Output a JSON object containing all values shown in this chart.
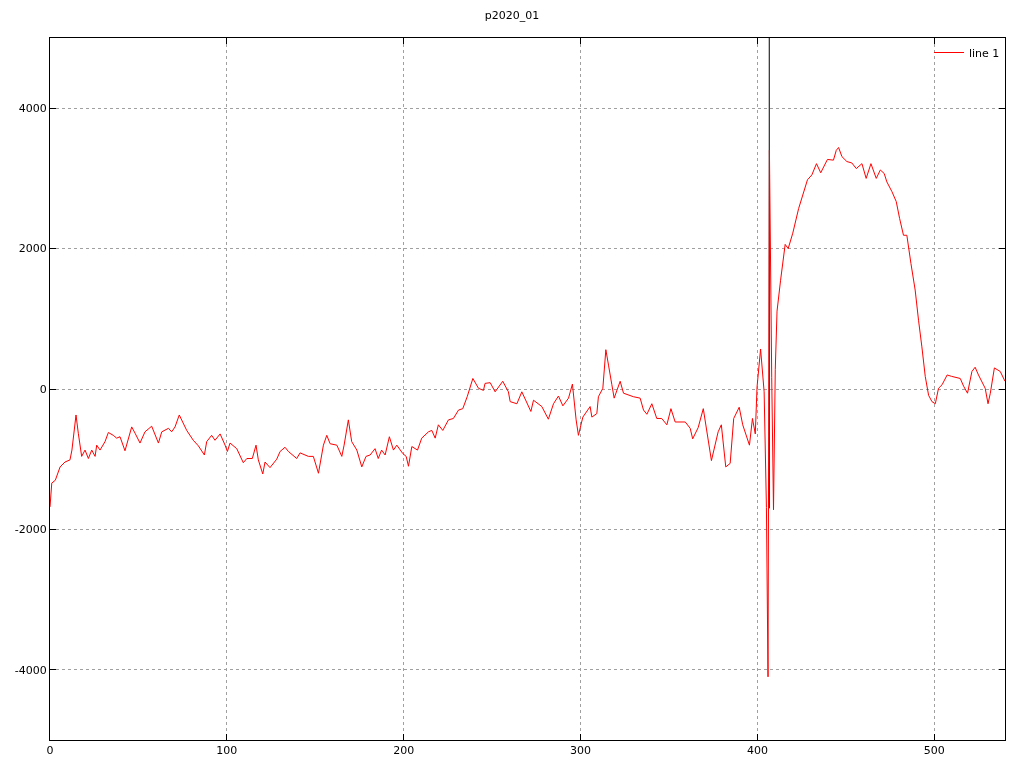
{
  "chart_data": {
    "type": "line",
    "title": "p2020_01",
    "xlim": [
      0,
      540
    ],
    "ylim": [
      -5000,
      5000
    ],
    "xticks": [
      0,
      100,
      200,
      300,
      400,
      500
    ],
    "yticks": [
      -4000,
      -2000,
      0,
      2000,
      4000
    ],
    "grid": true,
    "legend": "top right",
    "marker": "none",
    "line_style": "solid",
    "series": [
      {
        "name": "line 1",
        "color": "#ff0000",
        "x": [
          0,
          1,
          3,
          5.7,
          8.5,
          11.3,
          12.4,
          14.7,
          16,
          17.9,
          19.8,
          21.7,
          23.6,
          25.5,
          26.4,
          28.3,
          31.1,
          33,
          35.8,
          37.7,
          39.6,
          42.4,
          46.2,
          48.1,
          50.9,
          53.7,
          57.5,
          61.3,
          63.2,
          67,
          68.8,
          70.7,
          73.1,
          77.3,
          81,
          83.9,
          87.3,
          88.6,
          91.4,
          93.3,
          96.2,
          99,
          100.3,
          101.8,
          105.6,
          109.3,
          111.3,
          114.4,
          116.5,
          117.8,
          120.3,
          121.6,
          124.4,
          128.2,
          130.1,
          132.9,
          134.8,
          139.5,
          141.4,
          146.1,
          148.9,
          151.8,
          154.6,
          156.5,
          158.4,
          162.2,
          165,
          166.3,
          168.7,
          170.6,
          173.5,
          176.3,
          178.7,
          181,
          183.8,
          185.6,
          187.5,
          189.5,
          191.9,
          194.2,
          196.1,
          199.5,
          201.4,
          202.7,
          204.6,
          207.8,
          210.2,
          214,
          215.9,
          217.8,
          219.6,
          222.1,
          225.3,
          228.1,
          231,
          233.4,
          235.9,
          239.1,
          242.3,
          245.1,
          246,
          248.9,
          251.7,
          256,
          259.2,
          260.2,
          264,
          266.8,
          271.9,
          273.4,
          278.1,
          281.8,
          284.7,
          287.5,
          290,
          293.2,
          295.4,
          297.5,
          298.8,
          301.3,
          305.4,
          306.4,
          309.2,
          310.1,
          312.6,
          314.3,
          315.8,
          317.7,
          319,
          322.4,
          324.3,
          329.9,
          333.7,
          335.6,
          337.5,
          340.3,
          343.1,
          345.9,
          348.8,
          351.1,
          353.5,
          359.2,
          362,
          363.4,
          366.5,
          369.4,
          374,
          377.8,
          379.6,
          382.1,
          384.6,
          386.6,
          389.7,
          391.7,
          395.5,
          397.2,
          398.8,
          399.8,
          401.8,
          403.8,
          405.1,
          406,
          406.8,
          408.1,
          409.1,
          410.1,
          411.1,
          413.1,
          415.7,
          417.4,
          420,
          423.3,
          428.3,
          430.8,
          433.4,
          435.8,
          439.6,
          443,
          444.6,
          445.9,
          447.8,
          450.6,
          453.4,
          455.9,
          459.1,
          461.5,
          464.2,
          467.2,
          469.5,
          471.7,
          473.2,
          476.1,
          478.5,
          480.4,
          482.6,
          484.5,
          486.8,
          489.2,
          491.1,
          493,
          494.9,
          496.8,
          498.7,
          500.6,
          502.4,
          504.4,
          507.3,
          509.8,
          514.7,
          516.6,
          518.8,
          521.3,
          523.1,
          525,
          528.8,
          530.4,
          531.7,
          534,
          537.3,
          540
        ],
        "values": [
          -1680,
          -1340,
          -1300,
          -1110,
          -1040,
          -1010,
          -870,
          -370,
          -630,
          -960,
          -870,
          -990,
          -870,
          -960,
          -800,
          -870,
          -750,
          -620,
          -660,
          -700,
          -680,
          -880,
          -540,
          -630,
          -770,
          -610,
          -530,
          -770,
          -610,
          -560,
          -610,
          -540,
          -370,
          -590,
          -730,
          -810,
          -940,
          -750,
          -660,
          -730,
          -640,
          -800,
          -890,
          -770,
          -850,
          -1050,
          -990,
          -990,
          -800,
          -1010,
          -1210,
          -1040,
          -1120,
          -1000,
          -890,
          -830,
          -890,
          -990,
          -910,
          -960,
          -960,
          -1200,
          -800,
          -660,
          -780,
          -800,
          -960,
          -800,
          -440,
          -750,
          -870,
          -1110,
          -960,
          -940,
          -850,
          -990,
          -870,
          -940,
          -680,
          -870,
          -800,
          -920,
          -960,
          -1100,
          -820,
          -870,
          -700,
          -610,
          -590,
          -700,
          -510,
          -590,
          -440,
          -420,
          -300,
          -280,
          -110,
          150,
          10,
          -20,
          80,
          90,
          -40,
          110,
          -40,
          -180,
          -210,
          -40,
          -320,
          -160,
          -250,
          -430,
          -210,
          -100,
          -240,
          -130,
          70,
          -440,
          -660,
          -400,
          -250,
          -400,
          -350,
          -110,
          10,
          560,
          340,
          60,
          -130,
          110,
          -60,
          -110,
          -130,
          -300,
          -360,
          -210,
          -420,
          -420,
          -510,
          -280,
          -470,
          -470,
          -560,
          -710,
          -550,
          -280,
          -1020,
          -610,
          -510,
          -1110,
          -1060,
          -420,
          -260,
          -510,
          -800,
          -420,
          -640,
          30,
          570,
          -40,
          -1690,
          -4100,
          3400,
          160,
          -1720,
          280,
          1110,
          1550,
          2060,
          2000,
          2220,
          2570,
          2980,
          3050,
          3210,
          3080,
          3270,
          3260,
          3400,
          3440,
          3310,
          3240,
          3220,
          3140,
          3210,
          3000,
          3210,
          3000,
          3120,
          3070,
          2950,
          2810,
          2670,
          2430,
          2190,
          2190,
          1790,
          1410,
          980,
          600,
          180,
          -90,
          -180,
          -210,
          10,
          60,
          200,
          180,
          150,
          40,
          -60,
          250,
          310,
          200,
          10,
          -210,
          -60,
          300,
          250,
          110
        ]
      },
      {
        "color": "#000000",
        "x": [
          406.7,
          406.7
        ],
        "values": [
          5000,
          -1700
        ]
      }
    ]
  }
}
